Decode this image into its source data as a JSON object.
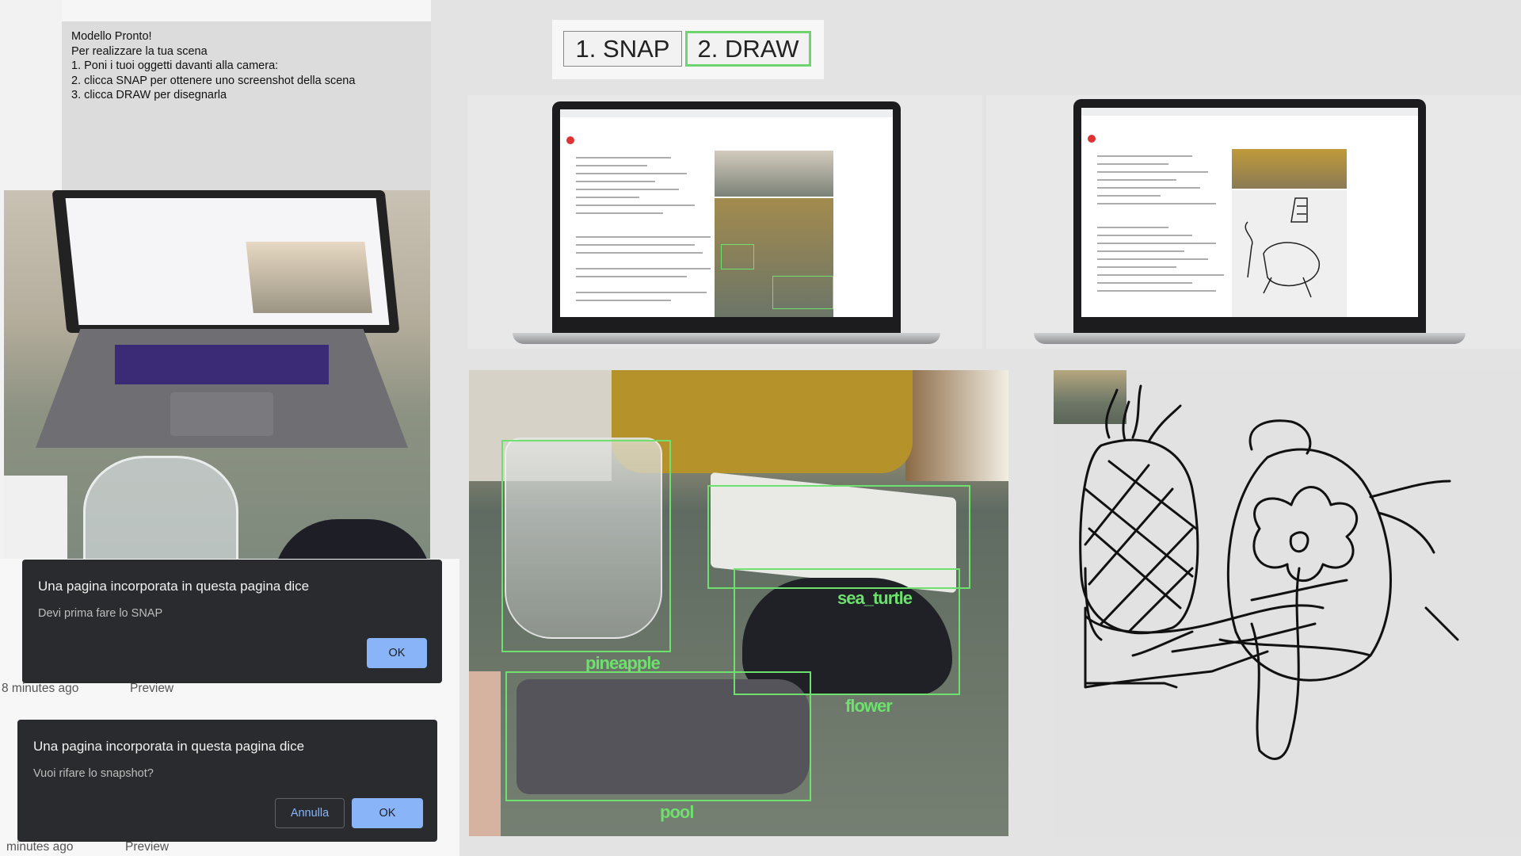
{
  "instructions": {
    "lines": [
      "Modello Pronto!",
      "Per realizzare la tua scena",
      "1. Poni i tuoi oggetti davanti alla camera:",
      "2. clicca SNAP per ottenere uno screenshot della scena",
      "3. clicca DRAW per disegnarla"
    ]
  },
  "dialogs": [
    {
      "title": "Una pagina incorporata in questa pagina dice",
      "message": "Devi prima fare lo SNAP",
      "ok_label": "OK"
    },
    {
      "title": "Una pagina incorporata in questa pagina dice",
      "message": "Vuoi rifare lo snapshot?",
      "cancel_label": "Annulla",
      "ok_label": "OK"
    }
  ],
  "list_rows": [
    {
      "time": "8 minutes ago",
      "action": "Preview"
    },
    {
      "time": "minutes ago",
      "action": "Preview"
    }
  ],
  "buttons": {
    "snap_label": "1. SNAP",
    "draw_label": "2. DRAW"
  },
  "detections": [
    {
      "label": "pineapple"
    },
    {
      "label": "sea_turtle"
    },
    {
      "label": "flower"
    },
    {
      "label": "pool"
    }
  ],
  "colors": {
    "detection_box": "#6ee06e",
    "draw_button_border": "#6fd36f",
    "dialog_bg": "#2a2b2e",
    "dialog_button": "#8ab4f8"
  }
}
